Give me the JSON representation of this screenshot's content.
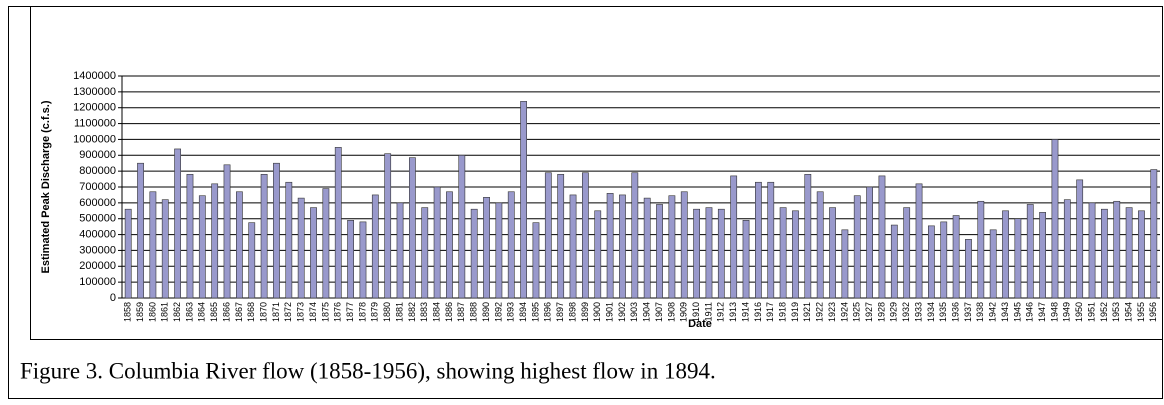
{
  "chart_data": {
    "type": "bar",
    "y_label": "Estimated Peak Discharge (c.f.s.)",
    "x_label": "Date",
    "categories": [
      "1858",
      "1859",
      "1860",
      "1861",
      "1862",
      "1863",
      "1864",
      "1865",
      "1866",
      "1867",
      "1868",
      "1870",
      "1871",
      "1872",
      "1873",
      "1874",
      "1875",
      "1876",
      "1877",
      "1878",
      "1879",
      "1880",
      "1881",
      "1882",
      "1883",
      "1884",
      "1886",
      "1887",
      "1888",
      "1890",
      "1892",
      "1893",
      "1894",
      "1895",
      "1896",
      "1897",
      "1898",
      "1899",
      "1900",
      "1901",
      "1902",
      "1903",
      "1904",
      "1907",
      "1908",
      "1909",
      "1910",
      "1911",
      "1912",
      "1913",
      "1914",
      "1916",
      "1917",
      "1918",
      "1919",
      "1921",
      "1922",
      "1923",
      "1924",
      "1925",
      "1927",
      "1928",
      "1929",
      "1932",
      "1933",
      "1934",
      "1935",
      "1936",
      "1937",
      "1938",
      "1942",
      "1943",
      "1945",
      "1946",
      "1947",
      "1948",
      "1949",
      "1950",
      "1951",
      "1952",
      "1953",
      "1954",
      "1955",
      "1956"
    ],
    "values": [
      560000,
      850000,
      670000,
      620000,
      940000,
      780000,
      645000,
      720000,
      840000,
      670000,
      475000,
      780000,
      850000,
      730000,
      630000,
      570000,
      690000,
      950000,
      490000,
      480000,
      650000,
      910000,
      600000,
      885000,
      570000,
      700000,
      670000,
      900000,
      560000,
      635000,
      600000,
      670000,
      1240000,
      475000,
      790000,
      780000,
      650000,
      790000,
      550000,
      660000,
      650000,
      790000,
      630000,
      590000,
      645000,
      670000,
      560000,
      570000,
      560000,
      770000,
      490000,
      730000,
      730000,
      570000,
      550000,
      780000,
      670000,
      570000,
      430000,
      645000,
      700000,
      770000,
      460000,
      570000,
      720000,
      455000,
      480000,
      520000,
      370000,
      610000,
      430000,
      550000,
      500000,
      590000,
      540000,
      1000000,
      620000,
      745000,
      600000,
      560000,
      610000,
      570000,
      550000,
      810000
    ],
    "color": "#9999cc",
    "ylim": [
      0,
      1400000
    ],
    "yticks": [
      0,
      100000,
      200000,
      300000,
      400000,
      500000,
      600000,
      700000,
      800000,
      900000,
      1000000,
      1100000,
      1200000,
      1300000,
      1400000
    ],
    "grid": true
  },
  "caption": "Figure 3. Columbia River flow (1858-1956), showing highest flow in 1894."
}
